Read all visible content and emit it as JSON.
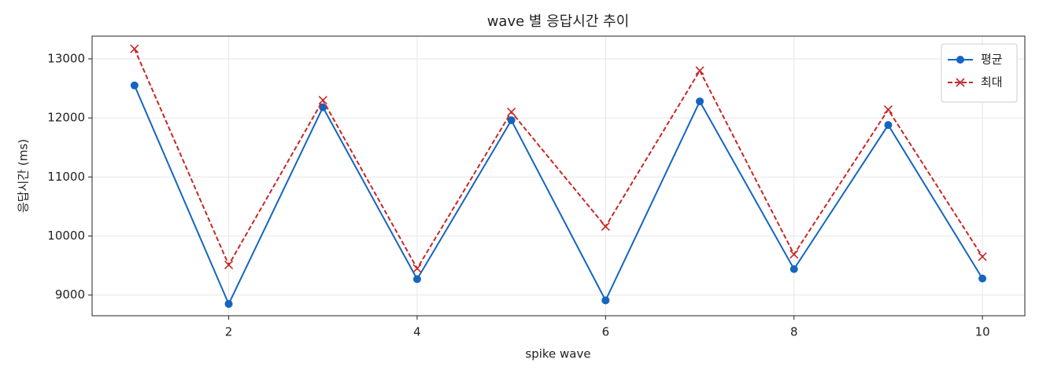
{
  "chart_data": {
    "type": "line",
    "title": "wave 별 응답시간 추이",
    "x_label": "spike wave",
    "y_label": "응답시간 (ms)",
    "x": [
      1,
      2,
      3,
      4,
      5,
      6,
      7,
      8,
      9,
      10
    ],
    "series": [
      {
        "name": "평균",
        "color": "#1565c0",
        "marker": "circle",
        "linestyle": "solid",
        "values": [
          12550,
          8850,
          12180,
          9270,
          11960,
          8910,
          12280,
          9440,
          11880,
          9280
        ]
      },
      {
        "name": "최대",
        "color": "#c62828",
        "marker": "x",
        "linestyle": "dashed",
        "values": [
          13170,
          9510,
          12300,
          9450,
          12100,
          10160,
          12800,
          9690,
          12140,
          9650
        ]
      }
    ],
    "xlim": [
      0.55,
      10.45
    ],
    "ylim": [
      8650,
      13385
    ],
    "xticks": [
      2,
      4,
      6,
      8,
      10
    ],
    "yticks": [
      9000,
      10000,
      11000,
      12000,
      13000
    ],
    "grid": true,
    "legend": "upper right"
  }
}
